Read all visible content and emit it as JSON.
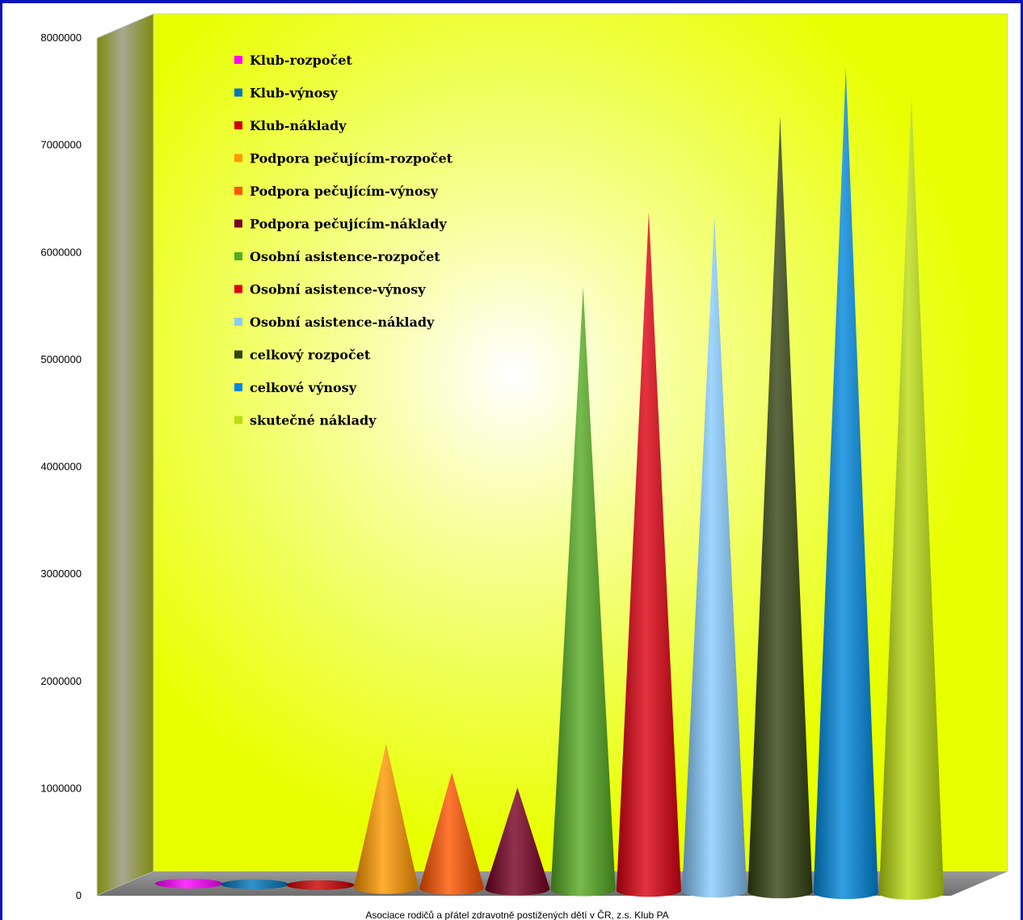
{
  "chart_data": {
    "type": "bar",
    "style": "3d-cone",
    "title": "",
    "xlabel": "",
    "ylabel": "",
    "ylim": [
      0,
      8000000
    ],
    "y_ticks": [
      "0",
      "1000000",
      "2000000",
      "3000000",
      "4000000",
      "5000000",
      "6000000",
      "7000000",
      "8000000"
    ],
    "legend_position": "top-left",
    "grid": false,
    "caption": "Asociace rodičů a přátel zdravotně postižených dětí v ČR, z.s. Klub PA",
    "series": [
      {
        "name": "Klub-rozpočet",
        "value": 0,
        "color": "#ff00ff"
      },
      {
        "name": "Klub-výnosy",
        "value": 0,
        "color": "#0077bb"
      },
      {
        "name": "Klub-náklady",
        "value": 0,
        "color": "#cc0000"
      },
      {
        "name": "Podpora pečujícím-rozpočet",
        "value": 1600000,
        "color": "#ff9900"
      },
      {
        "name": "Podpora pečujícím-výnosy",
        "value": 1330000,
        "color": "#ff5500"
      },
      {
        "name": "Podpora pečujícím-náklady",
        "value": 1190000,
        "color": "#770022"
      },
      {
        "name": "Osobní asistence-rozpočet",
        "value": 5860000,
        "color": "#55aa22"
      },
      {
        "name": "Osobní asistence-výnosy",
        "value": 6560000,
        "color": "#dd0011"
      },
      {
        "name": "Osobní asistence-náklady",
        "value": 6520000,
        "color": "#88ccff"
      },
      {
        "name": "celkový rozpočet",
        "value": 7450000,
        "color": "#334411"
      },
      {
        "name": "celkové výnosy",
        "value": 7900000,
        "color": "#0088dd"
      },
      {
        "name": "skutečné náklady",
        "value": 7650000,
        "color": "#bbdd11"
      }
    ]
  }
}
